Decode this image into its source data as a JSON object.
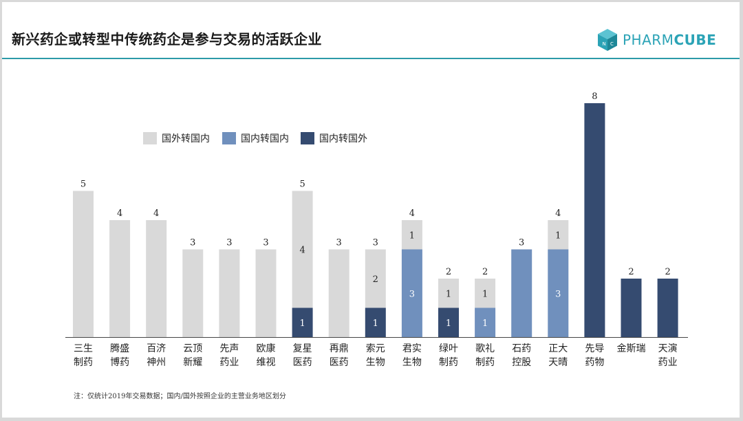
{
  "page": {
    "title": "新兴药企或转型中传统药企是参与交易的活跃企业",
    "note": "注：仅统计2019年交易数据；国内/国外按照企业的主营业务地区划分"
  },
  "logo": {
    "text_light": "PHARM",
    "text_bold": "CUBE",
    "color": "#2ba3b6"
  },
  "chart_data": {
    "type": "bar",
    "stacked": true,
    "categories": [
      [
        "三生",
        "制药"
      ],
      [
        "腾盛",
        "博药"
      ],
      [
        "百济",
        "神州"
      ],
      [
        "云顶",
        "新耀"
      ],
      [
        "先声",
        "药业"
      ],
      [
        "欧康",
        "维视"
      ],
      [
        "复星",
        "医药"
      ],
      [
        "再鼎",
        "医药"
      ],
      [
        "索元",
        "生物"
      ],
      [
        "君实",
        "生物"
      ],
      [
        "绿叶",
        "制药"
      ],
      [
        "歌礼",
        "制药"
      ],
      [
        "石药",
        "控股"
      ],
      [
        "正大",
        "天晴"
      ],
      [
        "先导",
        "药物"
      ],
      [
        "金斯瑞"
      ],
      [
        "天演",
        "药业"
      ]
    ],
    "series": [
      {
        "name": "国外转国内",
        "color": "#d9d9d9",
        "label_color": "#222222",
        "values": [
          5,
          4,
          4,
          3,
          3,
          3,
          4,
          3,
          2,
          1,
          1,
          1,
          0,
          1,
          0,
          0,
          0
        ]
      },
      {
        "name": "国内转国内",
        "color": "#7090bd",
        "label_color": "#ffffff",
        "values": [
          0,
          0,
          0,
          0,
          0,
          0,
          0,
          0,
          0,
          3,
          0,
          1,
          3,
          3,
          0,
          0,
          0
        ]
      },
      {
        "name": "国内转国外",
        "color": "#354b70",
        "label_color": "#ffffff",
        "values": [
          0,
          0,
          0,
          0,
          0,
          0,
          1,
          0,
          1,
          0,
          1,
          0,
          0,
          0,
          8,
          2,
          2
        ]
      }
    ],
    "totals": [
      5,
      4,
      4,
      3,
      3,
      3,
      5,
      3,
      3,
      4,
      2,
      2,
      3,
      4,
      8,
      2,
      2
    ],
    "ylim": [
      0,
      8
    ],
    "grid": false,
    "legend": "top-left"
  }
}
